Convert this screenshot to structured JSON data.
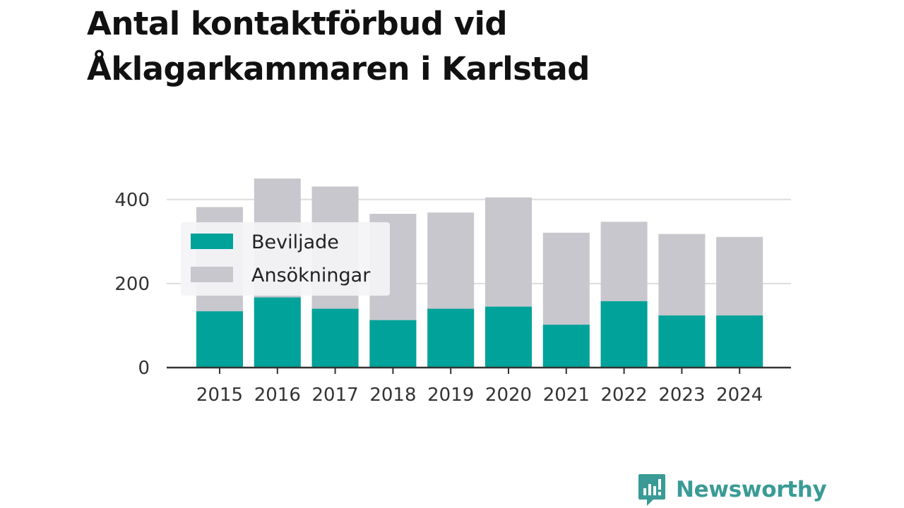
{
  "colors": {
    "beviljade": "#00a29a",
    "ansokningar": "#c8c7cd",
    "grid": "#dddddd",
    "axis": "#333333",
    "brand": "#3a9b96"
  },
  "brand": {
    "name": "Newsworthy",
    "icon": "newsworthy-logo-icon"
  },
  "chart_data": {
    "type": "bar",
    "title": "Antal kontaktförbud vid Åklagarkammaren i Karlstad",
    "categories": [
      "2015",
      "2016",
      "2017",
      "2018",
      "2019",
      "2020",
      "2021",
      "2022",
      "2023",
      "2024"
    ],
    "series": [
      {
        "name": "Beviljade",
        "values": [
          134,
          167,
          140,
          113,
          140,
          145,
          102,
          158,
          124,
          124
        ]
      },
      {
        "name": "Ansökningar",
        "values": [
          382,
          450,
          431,
          366,
          369,
          405,
          321,
          347,
          318,
          311
        ]
      }
    ],
    "overlap": true,
    "ylim": [
      0,
      450
    ],
    "yticks": [
      0,
      200,
      400
    ],
    "grid": true,
    "legend": "top-left"
  }
}
